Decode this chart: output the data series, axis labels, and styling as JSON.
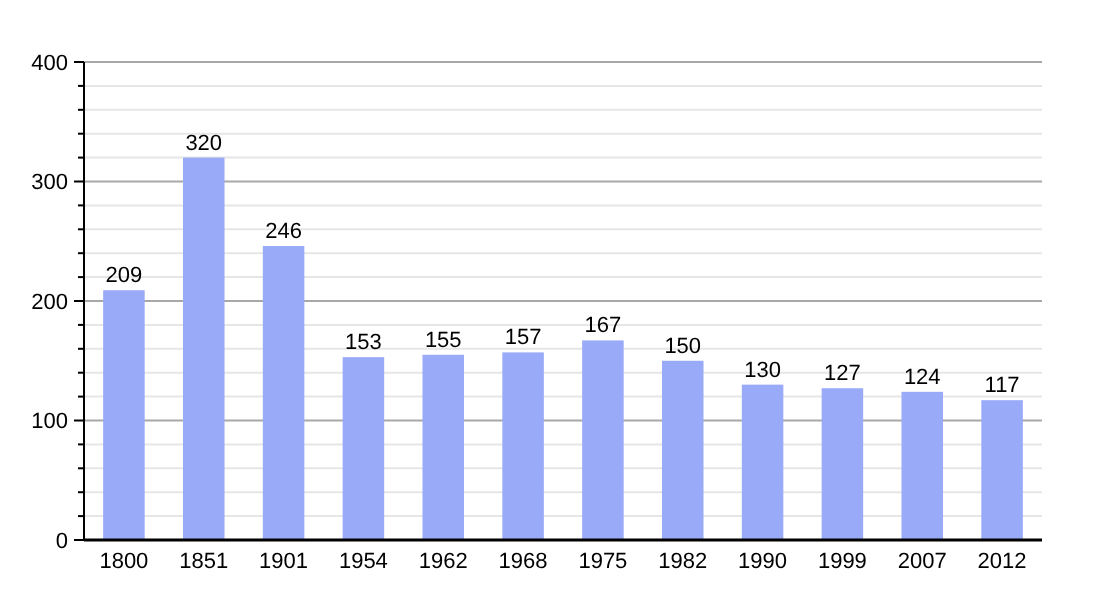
{
  "chart_data": {
    "type": "bar",
    "categories": [
      "1800",
      "1851",
      "1901",
      "1954",
      "1962",
      "1968",
      "1975",
      "1982",
      "1990",
      "1999",
      "2007",
      "2012"
    ],
    "values": [
      209,
      320,
      246,
      153,
      155,
      157,
      167,
      150,
      130,
      127,
      124,
      117
    ],
    "color": "#99aaf8",
    "ylim": [
      0,
      400
    ],
    "yticks": [
      0,
      {
        "value": 20,
        "label": null
      },
      {
        "value": 40,
        "label": null
      },
      {
        "value": 60,
        "label": null
      },
      {
        "value": 80,
        "label": null
      },
      100,
      {
        "value": 120,
        "label": null
      },
      {
        "value": 140,
        "label": null
      },
      {
        "value": 160,
        "label": null
      },
      {
        "value": 180,
        "label": null
      },
      200,
      {
        "value": 220,
        "label": null
      },
      {
        "value": 240,
        "label": null
      },
      {
        "value": 260,
        "label": null
      },
      {
        "value": 280,
        "label": null
      },
      300,
      {
        "value": 320,
        "label": null
      },
      {
        "value": 340,
        "label": null
      },
      {
        "value": 360,
        "label": null
      },
      {
        "value": 380,
        "label": null
      },
      400
    ],
    "grid": true,
    "data_labels": true
  }
}
